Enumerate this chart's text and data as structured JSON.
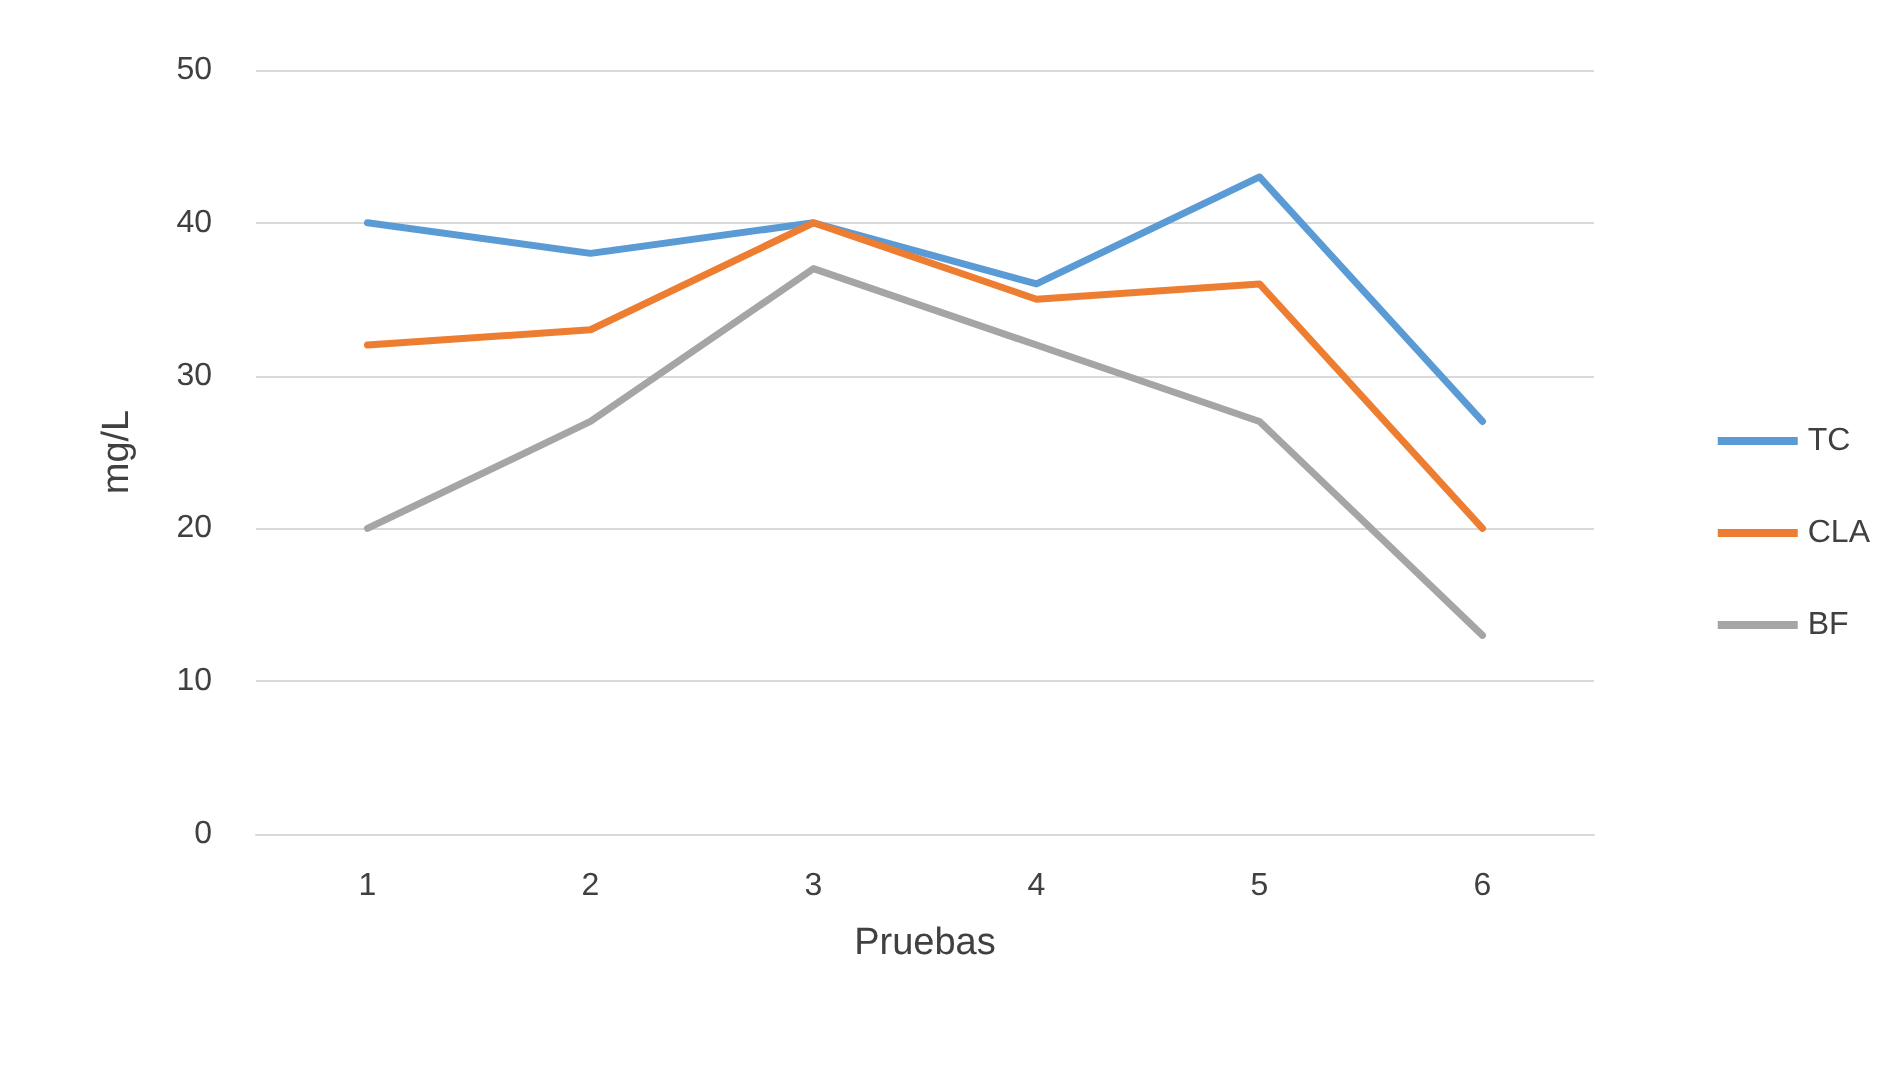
{
  "chart_data": {
    "type": "line",
    "xlabel": "Pruebas",
    "ylabel": "mg/L",
    "categories": [
      "1",
      "2",
      "3",
      "4",
      "5",
      "6"
    ],
    "series": [
      {
        "name": "TC",
        "color": "#5b9bd5",
        "values": [
          40,
          38,
          40,
          36,
          43,
          27
        ]
      },
      {
        "name": "CLA",
        "color": "#ed7d31",
        "values": [
          32,
          33,
          40,
          35,
          36,
          20
        ]
      },
      {
        "name": "BF",
        "color": "#a5a5a5",
        "values": [
          20,
          27,
          37,
          32,
          27,
          13
        ]
      }
    ],
    "ylim": [
      0,
      50
    ],
    "yticks": [
      0,
      10,
      20,
      30,
      40,
      50
    ],
    "grid": "y",
    "legend": "right",
    "marker": "none",
    "line_style": "solid"
  }
}
